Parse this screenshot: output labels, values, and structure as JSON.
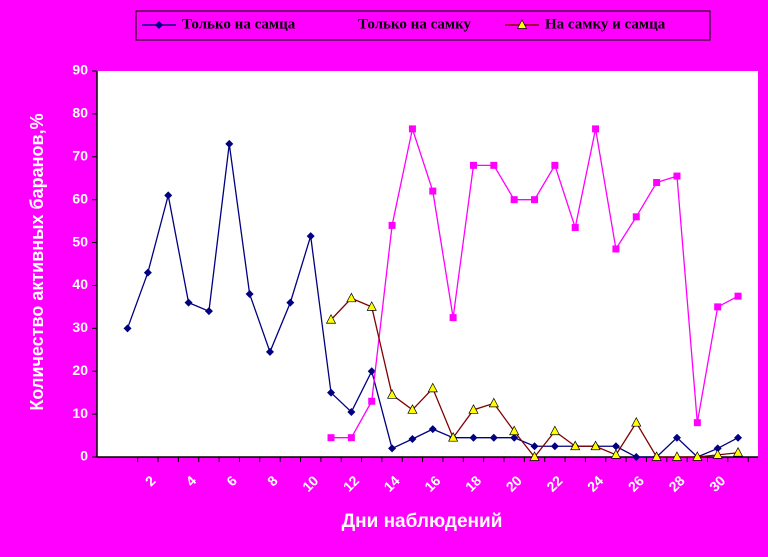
{
  "chart_data": {
    "type": "line",
    "xlabel": "Дни наблюдений",
    "ylabel": "Количество активных баранов,%",
    "categories": [
      null,
      "2",
      null,
      "4",
      null,
      "6",
      null,
      "8",
      null,
      "10",
      null,
      "12",
      null,
      "14",
      null,
      "16",
      null,
      "18",
      null,
      "20",
      null,
      "22",
      null,
      "24",
      null,
      "26",
      null,
      "28",
      null,
      "30",
      null
    ],
    "series": [
      {
        "name": "Только на самца",
        "color": "#000080",
        "marker_color": "#000080",
        "marker": "diamond",
        "values": [
          30,
          43,
          61,
          36,
          34,
          73,
          38,
          24.5,
          36,
          51.5,
          15,
          10.5,
          20,
          2,
          4.2,
          6.5,
          4.5,
          4.5,
          4.5,
          4.5,
          2.5,
          2.5,
          2.5,
          2.5,
          2.5,
          0,
          0,
          4.5,
          0,
          2,
          4.5
        ]
      },
      {
        "name": "Только на самку",
        "color": "#ff00ff",
        "marker_color": "#ff00ff",
        "marker": "square",
        "values": [
          null,
          null,
          null,
          null,
          null,
          null,
          null,
          null,
          null,
          null,
          4.5,
          4.5,
          13,
          54,
          76.5,
          62,
          32.5,
          68,
          68,
          60,
          60,
          68,
          53.5,
          76.5,
          48.5,
          56,
          64,
          65.5,
          8,
          35,
          37.5
        ]
      },
      {
        "name": "На самку и самца",
        "color": "#800000",
        "marker_color": "#ffff00",
        "marker": "triangle",
        "values": [
          null,
          null,
          null,
          null,
          null,
          null,
          null,
          null,
          null,
          null,
          32,
          37,
          35,
          14.5,
          11,
          16,
          4.5,
          11,
          12.5,
          6,
          0,
          6,
          2.5,
          2.5,
          0.5,
          8,
          0,
          0,
          0,
          0.5,
          1
        ]
      }
    ],
    "ylim": [
      0,
      90
    ],
    "yticks": [
      0,
      10,
      20,
      30,
      40,
      50,
      60,
      70,
      80,
      90
    ],
    "grid": false,
    "legend": "top"
  }
}
